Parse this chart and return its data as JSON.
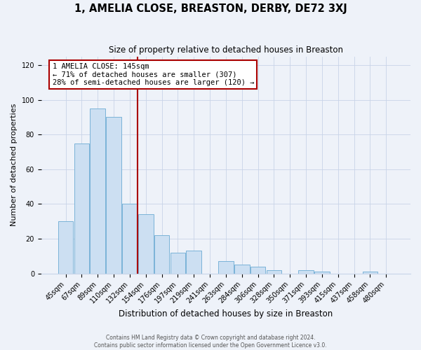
{
  "title": "1, AMELIA CLOSE, BREASTON, DERBY, DE72 3XJ",
  "subtitle": "Size of property relative to detached houses in Breaston",
  "xlabel": "Distribution of detached houses by size in Breaston",
  "ylabel": "Number of detached properties",
  "bar_labels": [
    "45sqm",
    "67sqm",
    "89sqm",
    "110sqm",
    "132sqm",
    "154sqm",
    "176sqm",
    "197sqm",
    "219sqm",
    "241sqm",
    "263sqm",
    "284sqm",
    "306sqm",
    "328sqm",
    "350sqm",
    "371sqm",
    "393sqm",
    "415sqm",
    "437sqm",
    "458sqm",
    "480sqm"
  ],
  "bar_values": [
    30,
    75,
    95,
    90,
    40,
    34,
    22,
    12,
    13,
    0,
    7,
    5,
    4,
    2,
    0,
    2,
    1,
    0,
    0,
    1,
    0
  ],
  "bar_color": "#ccdff2",
  "bar_edge_color": "#7ab3d8",
  "ylim": [
    0,
    125
  ],
  "yticks": [
    0,
    20,
    40,
    60,
    80,
    100,
    120
  ],
  "vline_x_index": 5,
  "vline_color": "#aa0000",
  "annotation_title": "1 AMELIA CLOSE: 145sqm",
  "annotation_line1": "← 71% of detached houses are smaller (307)",
  "annotation_line2": "28% of semi-detached houses are larger (120) →",
  "annotation_box_facecolor": "#ffffff",
  "annotation_box_edgecolor": "#aa0000",
  "bg_color": "#eef2f9",
  "plot_bg_color": "#eef2f9",
  "grid_color": "#c8d4e8",
  "title_fontsize": 10.5,
  "subtitle_fontsize": 8.5,
  "ylabel_fontsize": 8,
  "xlabel_fontsize": 8.5,
  "tick_fontsize": 7,
  "footer_line1": "Contains HM Land Registry data © Crown copyright and database right 2024.",
  "footer_line2": "Contains public sector information licensed under the Open Government Licence v3.0."
}
